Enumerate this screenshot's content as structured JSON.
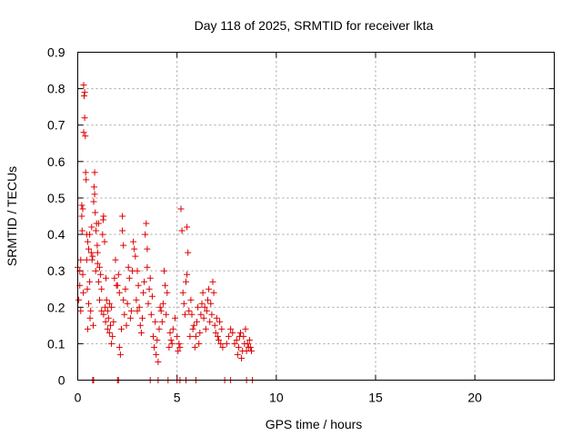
{
  "chart_data": {
    "type": "scatter",
    "title": "Day 118 of 2025, SRMTID for receiver lkta",
    "xlabel": "GPS time / hours",
    "ylabel": "SRMTID / TECUs",
    "xlim": [
      0,
      24
    ],
    "ylim": [
      0,
      0.9
    ],
    "xticks": [
      0,
      5,
      10,
      15,
      20
    ],
    "yticks": [
      0,
      0.1,
      0.2,
      0.3,
      0.4,
      0.5,
      0.6,
      0.7,
      0.8,
      0.9
    ],
    "xtick_labels": [
      "0",
      "5",
      "10",
      "15",
      "20"
    ],
    "ytick_labels": [
      "0",
      "0.1",
      "0.2",
      "0.3",
      "0.4",
      "0.5",
      "0.6",
      "0.7",
      "0.8",
      "0.9"
    ],
    "grid": true,
    "marker": "+",
    "color": "#dd0000",
    "series": [
      {
        "name": "SRMTID",
        "points": [
          [
            0.0,
            0.31
          ],
          [
            0.05,
            0.22
          ],
          [
            0.1,
            0.3
          ],
          [
            0.1,
            0.26
          ],
          [
            0.15,
            0.19
          ],
          [
            0.15,
            0.33
          ],
          [
            0.2,
            0.48
          ],
          [
            0.2,
            0.45
          ],
          [
            0.22,
            0.41
          ],
          [
            0.25,
            0.47
          ],
          [
            0.25,
            0.29
          ],
          [
            0.28,
            0.24
          ],
          [
            0.3,
            0.68
          ],
          [
            0.3,
            0.81
          ],
          [
            0.32,
            0.78
          ],
          [
            0.35,
            0.72
          ],
          [
            0.35,
            0.79
          ],
          [
            0.38,
            0.67
          ],
          [
            0.4,
            0.57
          ],
          [
            0.42,
            0.55
          ],
          [
            0.45,
            0.4
          ],
          [
            0.45,
            0.33
          ],
          [
            0.48,
            0.25
          ],
          [
            0.5,
            0.14
          ],
          [
            0.5,
            0.38
          ],
          [
            0.55,
            0.36
          ],
          [
            0.55,
            0.21
          ],
          [
            0.6,
            0.27
          ],
          [
            0.6,
            0.4
          ],
          [
            0.62,
            0.17
          ],
          [
            0.65,
            0.19
          ],
          [
            0.68,
            0.35
          ],
          [
            0.7,
            0.42
          ],
          [
            0.72,
            0.33
          ],
          [
            0.75,
            0.34
          ],
          [
            0.78,
            0.15
          ],
          [
            0.8,
            0.49
          ],
          [
            0.82,
            0.53
          ],
          [
            0.85,
            0.57
          ],
          [
            0.85,
            0.51
          ],
          [
            0.88,
            0.46
          ],
          [
            0.9,
            0.3
          ],
          [
            0.92,
            0.41
          ],
          [
            0.95,
            0.43
          ],
          [
            0.98,
            0.37
          ],
          [
            1.0,
            0.35
          ],
          [
            1.0,
            0.32
          ],
          [
            1.05,
            0.43
          ],
          [
            1.05,
            0.27
          ],
          [
            1.1,
            0.22
          ],
          [
            1.1,
            0.31
          ],
          [
            1.15,
            0.29
          ],
          [
            1.2,
            0.19
          ],
          [
            1.2,
            0.25
          ],
          [
            1.25,
            0.4
          ],
          [
            1.28,
            0.44
          ],
          [
            1.3,
            0.45
          ],
          [
            1.3,
            0.18
          ],
          [
            1.35,
            0.38
          ],
          [
            1.38,
            0.2
          ],
          [
            1.4,
            0.16
          ],
          [
            1.42,
            0.28
          ],
          [
            1.45,
            0.22
          ],
          [
            1.5,
            0.14
          ],
          [
            1.5,
            0.19
          ],
          [
            1.55,
            0.17
          ],
          [
            1.6,
            0.13
          ],
          [
            1.6,
            0.21
          ],
          [
            1.65,
            0.15
          ],
          [
            1.7,
            0.1
          ],
          [
            1.7,
            0.2
          ],
          [
            1.75,
            0.12
          ],
          [
            1.8,
            0.16
          ],
          [
            1.85,
            0.28
          ],
          [
            1.9,
            0.33
          ],
          [
            1.95,
            0.26
          ],
          [
            2.0,
            0.26
          ],
          [
            2.05,
            0.29
          ],
          [
            2.1,
            0.09
          ],
          [
            2.1,
            0.24
          ],
          [
            2.15,
            0.07
          ],
          [
            2.2,
            0.14
          ],
          [
            2.25,
            0.45
          ],
          [
            2.25,
            0.41
          ],
          [
            2.3,
            0.37
          ],
          [
            2.3,
            0.22
          ],
          [
            2.35,
            0.18
          ],
          [
            2.4,
            0.25
          ],
          [
            2.45,
            0.15
          ],
          [
            2.5,
            0.21
          ],
          [
            2.55,
            0.31
          ],
          [
            2.6,
            0.28
          ],
          [
            2.65,
            0.17
          ],
          [
            2.7,
            0.19
          ],
          [
            2.75,
            0.3
          ],
          [
            2.8,
            0.38
          ],
          [
            2.85,
            0.36
          ],
          [
            2.9,
            0.34
          ],
          [
            2.95,
            0.22
          ],
          [
            3.0,
            0.19
          ],
          [
            3.0,
            0.3
          ],
          [
            3.05,
            0.26
          ],
          [
            3.1,
            0.2
          ],
          [
            3.15,
            0.15
          ],
          [
            3.2,
            0.13
          ],
          [
            3.25,
            0.17
          ],
          [
            3.3,
            0.24
          ],
          [
            3.35,
            0.27
          ],
          [
            3.4,
            0.4
          ],
          [
            3.45,
            0.43
          ],
          [
            3.5,
            0.36
          ],
          [
            3.5,
            0.31
          ],
          [
            3.55,
            0.21
          ],
          [
            3.6,
            0.25
          ],
          [
            3.65,
            0.28
          ],
          [
            3.7,
            0.18
          ],
          [
            3.75,
            0.23
          ],
          [
            3.8,
            0.12
          ],
          [
            3.85,
            0.09
          ],
          [
            3.9,
            0.16
          ],
          [
            3.95,
            0.07
          ],
          [
            4.0,
            0.11
          ],
          [
            4.05,
            0.05
          ],
          [
            4.1,
            0.14
          ],
          [
            4.15,
            0.2
          ],
          [
            4.2,
            0.19
          ],
          [
            4.25,
            0.16
          ],
          [
            4.3,
            0.21
          ],
          [
            4.35,
            0.3
          ],
          [
            4.4,
            0.26
          ],
          [
            4.45,
            0.18
          ],
          [
            4.5,
            0.24
          ],
          [
            4.6,
            0.09
          ],
          [
            4.65,
            0.13
          ],
          [
            4.7,
            0.11
          ],
          [
            4.75,
            0.1
          ],
          [
            4.8,
            0.14
          ],
          [
            4.9,
            0.17
          ],
          [
            5.0,
            0.12
          ],
          [
            5.05,
            0.08
          ],
          [
            5.1,
            0.1
          ],
          [
            5.15,
            0.09
          ],
          [
            5.2,
            0.47
          ],
          [
            5.25,
            0.41
          ],
          [
            5.3,
            0.24
          ],
          [
            5.35,
            0.21
          ],
          [
            5.4,
            0.18
          ],
          [
            5.45,
            0.27
          ],
          [
            5.5,
            0.29
          ],
          [
            5.5,
            0.42
          ],
          [
            5.55,
            0.35
          ],
          [
            5.6,
            0.19
          ],
          [
            5.65,
            0.12
          ],
          [
            5.7,
            0.22
          ],
          [
            5.75,
            0.18
          ],
          [
            5.8,
            0.14
          ],
          [
            5.85,
            0.15
          ],
          [
            5.9,
            0.09
          ],
          [
            5.95,
            0.12
          ],
          [
            6.0,
            0.16
          ],
          [
            6.05,
            0.2
          ],
          [
            6.1,
            0.1
          ],
          [
            6.15,
            0.13
          ],
          [
            6.2,
            0.18
          ],
          [
            6.25,
            0.21
          ],
          [
            6.3,
            0.24
          ],
          [
            6.35,
            0.17
          ],
          [
            6.4,
            0.2
          ],
          [
            6.45,
            0.14
          ],
          [
            6.5,
            0.19
          ],
          [
            6.55,
            0.22
          ],
          [
            6.6,
            0.25
          ],
          [
            6.65,
            0.16
          ],
          [
            6.7,
            0.21
          ],
          [
            6.75,
            0.18
          ],
          [
            6.8,
            0.27
          ],
          [
            6.85,
            0.24
          ],
          [
            6.9,
            0.15
          ],
          [
            6.95,
            0.13
          ],
          [
            7.0,
            0.17
          ],
          [
            7.05,
            0.12
          ],
          [
            7.1,
            0.11
          ],
          [
            7.15,
            0.16
          ],
          [
            7.2,
            0.1
          ],
          [
            7.25,
            0.14
          ],
          [
            7.3,
            0.09
          ],
          [
            7.5,
            0.1
          ],
          [
            7.6,
            0.12
          ],
          [
            7.7,
            0.14
          ],
          [
            7.8,
            0.13
          ],
          [
            7.9,
            0.1
          ],
          [
            8.0,
            0.11
          ],
          [
            8.05,
            0.07
          ],
          [
            8.1,
            0.09
          ],
          [
            8.15,
            0.12
          ],
          [
            8.2,
            0.13
          ],
          [
            8.25,
            0.06
          ],
          [
            8.3,
            0.08
          ],
          [
            8.35,
            0.12
          ],
          [
            8.4,
            0.1
          ],
          [
            8.45,
            0.14
          ],
          [
            8.5,
            0.08
          ],
          [
            8.55,
            0.1
          ],
          [
            8.6,
            0.09
          ],
          [
            8.65,
            0.11
          ],
          [
            8.7,
            0.09
          ],
          [
            8.75,
            0.08
          ],
          [
            0.75,
            0.0
          ],
          [
            0.8,
            0.0
          ],
          [
            2.0,
            0.0
          ],
          [
            2.05,
            0.0
          ],
          [
            3.65,
            0.0
          ],
          [
            4.05,
            0.0
          ],
          [
            4.55,
            0.0
          ],
          [
            5.0,
            0.0
          ],
          [
            5.15,
            0.0
          ],
          [
            5.45,
            0.0
          ],
          [
            5.95,
            0.0
          ],
          [
            7.4,
            0.0
          ],
          [
            7.7,
            0.0
          ],
          [
            8.5,
            0.0
          ],
          [
            8.8,
            0.0
          ]
        ]
      }
    ]
  }
}
